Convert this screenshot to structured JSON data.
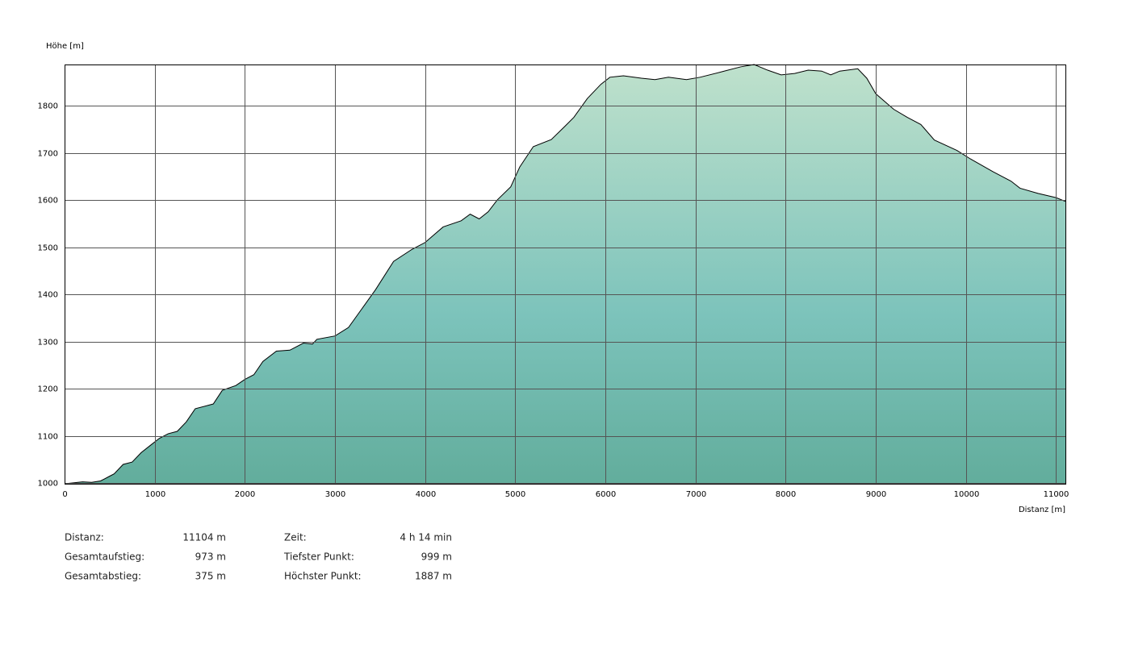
{
  "chart_data": {
    "type": "area",
    "y_label": "Höhe [m]",
    "x_label": "Distanz [m]",
    "x": [
      0,
      200,
      300,
      400,
      500,
      550,
      650,
      750,
      850,
      950,
      1050,
      1150,
      1250,
      1350,
      1450,
      1650,
      1750,
      1900,
      2000,
      2100,
      2200,
      2350,
      2500,
      2650,
      2750,
      2800,
      3000,
      3150,
      3300,
      3450,
      3650,
      3850,
      4000,
      4200,
      4400,
      4500,
      4600,
      4700,
      4800,
      4950,
      5050,
      5200,
      5400,
      5550,
      5650,
      5800,
      5950,
      6050,
      6200,
      6400,
      6550,
      6700,
      6900,
      7050,
      7300,
      7500,
      7650,
      7800,
      7950,
      8100,
      8250,
      8400,
      8500,
      8600,
      8800,
      8900,
      9000,
      9200,
      9350,
      9500,
      9650,
      9900,
      10050,
      10300,
      10500,
      10600,
      10800,
      11000,
      11104
    ],
    "values": [
      999,
      1003,
      1002,
      1005,
      1015,
      1020,
      1040,
      1045,
      1065,
      1080,
      1095,
      1105,
      1110,
      1130,
      1158,
      1168,
      1197,
      1207,
      1220,
      1230,
      1258,
      1280,
      1282,
      1297,
      1295,
      1305,
      1312,
      1330,
      1370,
      1410,
      1470,
      1495,
      1510,
      1543,
      1556,
      1570,
      1560,
      1575,
      1600,
      1628,
      1670,
      1713,
      1728,
      1756,
      1775,
      1815,
      1845,
      1860,
      1863,
      1858,
      1855,
      1860,
      1855,
      1860,
      1872,
      1882,
      1887,
      1875,
      1865,
      1868,
      1875,
      1873,
      1865,
      1873,
      1878,
      1858,
      1825,
      1792,
      1775,
      1760,
      1727,
      1705,
      1687,
      1660,
      1640,
      1625,
      1614,
      1605,
      1597
    ],
    "xlim": [
      0,
      11104
    ],
    "ylim": [
      999,
      1887
    ],
    "xticks": [
      0,
      1000,
      2000,
      3000,
      4000,
      5000,
      6000,
      7000,
      8000,
      9000,
      10000,
      11000
    ],
    "yticks": [
      1000,
      1100,
      1200,
      1300,
      1400,
      1500,
      1600,
      1700,
      1800
    ],
    "grid": true,
    "line_color": "#000000",
    "fill_colors": [
      "#bfe1cc",
      "#7cc3bb",
      "#62ad9c"
    ]
  },
  "stats": [
    {
      "label": "Distanz:",
      "value": "11104 m"
    },
    {
      "label": "Gesamtaufstieg:",
      "value": "973 m"
    },
    {
      "label": "Gesamtabstieg:",
      "value": "375 m"
    },
    {
      "label": "Zeit:",
      "value": "4 h 14 min"
    },
    {
      "label": "Tiefster Punkt:",
      "value": "999 m"
    },
    {
      "label": "Höchster Punkt:",
      "value": "1887 m"
    }
  ]
}
